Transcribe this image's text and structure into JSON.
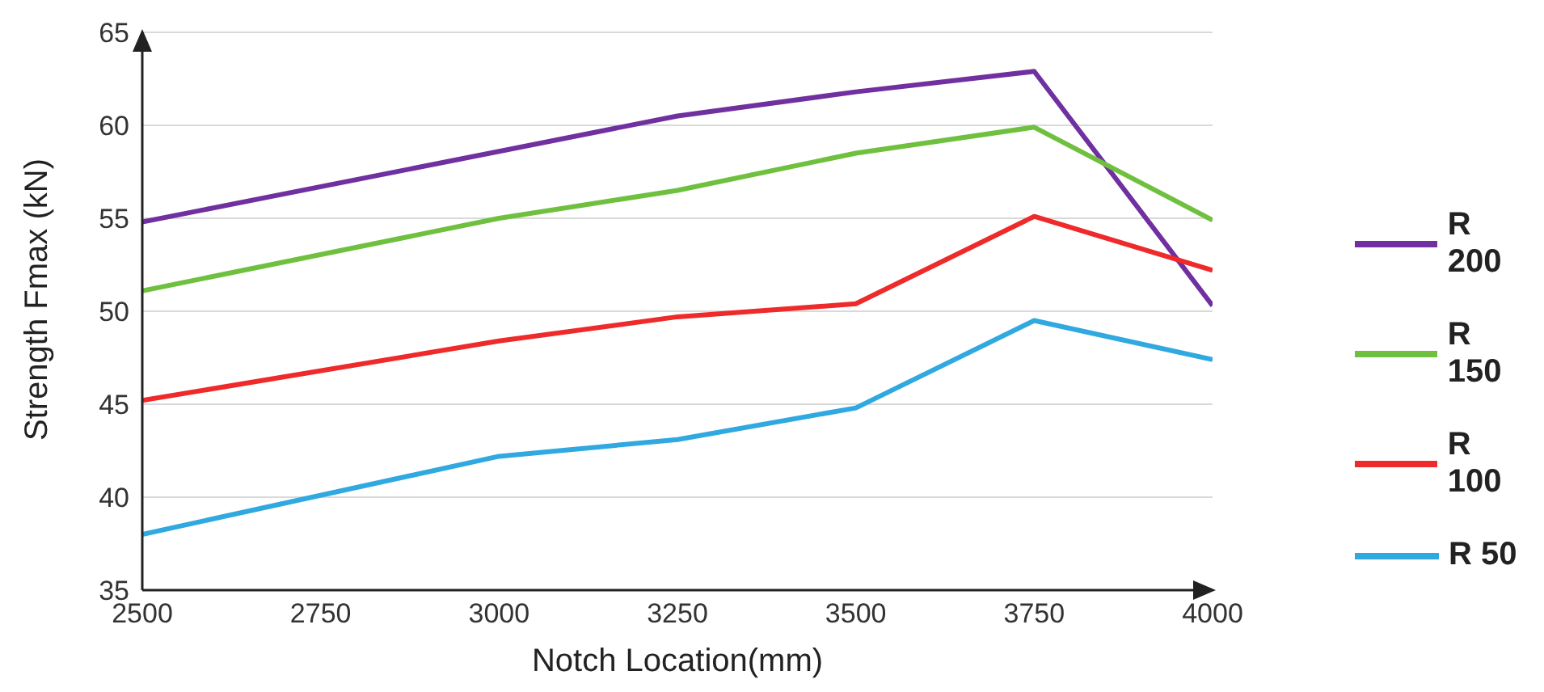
{
  "chart_data": {
    "type": "line",
    "xlabel": "Notch Location(mm)",
    "ylabel": "Strength Fmax  (kN)",
    "x": [
      2500,
      3000,
      3250,
      3500,
      3750,
      4000
    ],
    "series": [
      {
        "name": "R 200",
        "color": "#7030a0",
        "values": [
          54.8,
          58.6,
          60.5,
          61.8,
          62.9,
          50.3
        ]
      },
      {
        "name": "R 150",
        "color": "#70c040",
        "values": [
          51.1,
          55.0,
          56.5,
          58.5,
          59.9,
          54.9
        ]
      },
      {
        "name": "R 100",
        "color": "#ee2a2a",
        "values": [
          45.2,
          48.4,
          49.7,
          50.4,
          55.1,
          52.2
        ]
      },
      {
        "name": "R 50",
        "color": "#30a8e0",
        "values": [
          38.0,
          42.2,
          43.1,
          44.8,
          49.5,
          47.4
        ]
      }
    ],
    "xlim": [
      2500,
      4000
    ],
    "xticks": [
      2500,
      2750,
      3000,
      3250,
      3500,
      3750,
      4000
    ],
    "ylim": [
      35,
      65
    ],
    "yticks": [
      35,
      40,
      45,
      50,
      55,
      60,
      65
    ],
    "grid": "y",
    "legend": "right",
    "marker": "none",
    "line_style": "solid"
  }
}
